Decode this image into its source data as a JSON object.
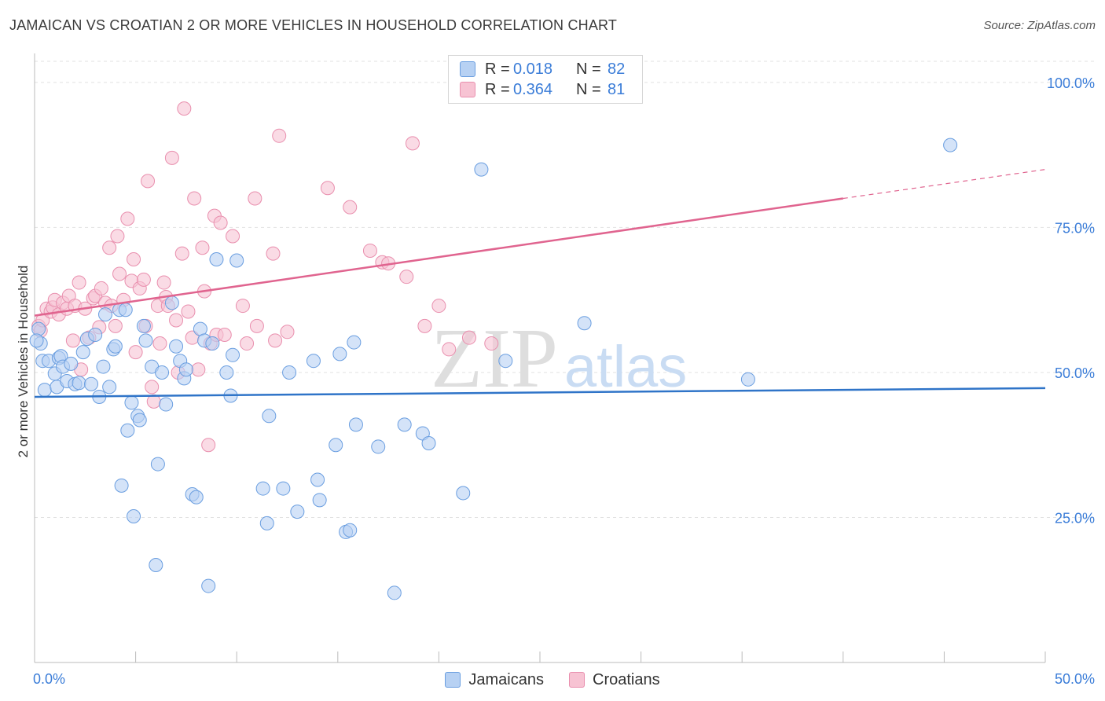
{
  "title": "JAMAICAN VS CROATIAN 2 OR MORE VEHICLES IN HOUSEHOLD CORRELATION CHART",
  "source": "Source: ZipAtlas.com",
  "watermark": {
    "zip": "ZIP",
    "atlas": "atlas"
  },
  "legend": {
    "r_label": "R =",
    "n_label": "N =",
    "jamaicans": {
      "r": "0.018",
      "n": "82"
    },
    "croatians": {
      "r": "0.364",
      "n": "81"
    }
  },
  "colors": {
    "blue_fill": "#b7d1f3",
    "blue_stroke": "#6a9ee0",
    "blue_line": "#2f74c8",
    "pink_fill": "#f7c3d3",
    "pink_stroke": "#e98fae",
    "pink_line": "#e0648f",
    "tick_label": "#3b7dd8",
    "grid": "#e2e2e2"
  },
  "chart_data": {
    "type": "scatter",
    "title": "JAMAICAN VS CROATIAN 2 OR MORE VEHICLES IN HOUSEHOLD CORRELATION CHART",
    "xlabel": "",
    "ylabel": "2 or more Vehicles in Household",
    "xlim": [
      0,
      50
    ],
    "ylim": [
      0,
      105
    ],
    "x_tick_labels": [
      "0.0%",
      "50.0%"
    ],
    "y_ticks": [
      25,
      50,
      75,
      100
    ],
    "y_tick_labels": [
      "25.0%",
      "50.0%",
      "75.0%",
      "100.0%"
    ],
    "legend_position": "bottom-center",
    "series": [
      {
        "name": "Jamaicans",
        "trend": {
          "x": [
            0,
            50
          ],
          "y": [
            45.8,
            47.3
          ],
          "dashed_from": null
        },
        "points": [
          [
            0.2,
            57.5
          ],
          [
            0.3,
            55
          ],
          [
            0.4,
            52
          ],
          [
            0.5,
            47
          ],
          [
            0.7,
            52
          ],
          [
            1.0,
            49.8
          ],
          [
            1.1,
            47.5
          ],
          [
            1.2,
            52.5
          ],
          [
            1.3,
            52.8
          ],
          [
            1.4,
            51
          ],
          [
            1.6,
            48.5
          ],
          [
            1.8,
            51.5
          ],
          [
            2.0,
            48
          ],
          [
            2.2,
            48.2
          ],
          [
            2.4,
            53.5
          ],
          [
            2.6,
            55.8
          ],
          [
            2.8,
            48
          ],
          [
            3.0,
            56.5
          ],
          [
            3.2,
            45.8
          ],
          [
            3.4,
            51
          ],
          [
            3.5,
            60
          ],
          [
            3.7,
            47.5
          ],
          [
            3.9,
            54
          ],
          [
            4.0,
            54.5
          ],
          [
            4.2,
            60.8
          ],
          [
            4.3,
            30.5
          ],
          [
            4.5,
            60.8
          ],
          [
            4.6,
            40
          ],
          [
            4.8,
            44.8
          ],
          [
            4.9,
            25.2
          ],
          [
            5.1,
            42.5
          ],
          [
            5.2,
            41.8
          ],
          [
            5.4,
            58
          ],
          [
            5.5,
            55.5
          ],
          [
            5.8,
            51
          ],
          [
            6.0,
            16.8
          ],
          [
            6.1,
            34.2
          ],
          [
            6.3,
            50
          ],
          [
            6.5,
            44.5
          ],
          [
            6.8,
            62
          ],
          [
            7.0,
            54.5
          ],
          [
            7.2,
            52
          ],
          [
            7.4,
            49
          ],
          [
            7.5,
            50.5
          ],
          [
            7.8,
            29
          ],
          [
            8.0,
            28.5
          ],
          [
            8.2,
            57.5
          ],
          [
            8.4,
            55.5
          ],
          [
            8.6,
            13.2
          ],
          [
            8.8,
            55
          ],
          [
            9.0,
            69.5
          ],
          [
            9.5,
            50
          ],
          [
            9.7,
            46
          ],
          [
            9.8,
            53
          ],
          [
            10.0,
            69.3
          ],
          [
            11.3,
            30
          ],
          [
            11.5,
            24
          ],
          [
            11.6,
            42.5
          ],
          [
            12.3,
            30
          ],
          [
            12.6,
            50
          ],
          [
            13.0,
            26
          ],
          [
            13.8,
            52
          ],
          [
            14.0,
            31.5
          ],
          [
            14.1,
            28
          ],
          [
            14.9,
            37.5
          ],
          [
            15.1,
            53.2
          ],
          [
            15.4,
            22.5
          ],
          [
            15.6,
            22.8
          ],
          [
            15.8,
            55.2
          ],
          [
            15.9,
            41
          ],
          [
            17.0,
            37.2
          ],
          [
            17.8,
            12
          ],
          [
            18.3,
            41
          ],
          [
            19.2,
            39.5
          ],
          [
            19.5,
            37.8
          ],
          [
            21.2,
            29.2
          ],
          [
            22.1,
            85
          ],
          [
            23.3,
            52
          ],
          [
            27.2,
            58.5
          ],
          [
            35.3,
            48.8
          ],
          [
            45.3,
            89.2
          ],
          [
            0.1,
            55.5
          ]
        ]
      },
      {
        "name": "Croatians",
        "trend": {
          "x": [
            0,
            40,
            50
          ],
          "y": [
            59.8,
            80,
            85
          ],
          "dashed_from": 40
        },
        "points": [
          [
            0.2,
            58
          ],
          [
            0.3,
            57.2
          ],
          [
            0.4,
            59
          ],
          [
            0.6,
            61
          ],
          [
            0.8,
            60.5
          ],
          [
            0.9,
            61.2
          ],
          [
            1.0,
            62.5
          ],
          [
            1.2,
            60
          ],
          [
            1.4,
            62
          ],
          [
            1.6,
            61
          ],
          [
            1.7,
            63.2
          ],
          [
            1.9,
            55.5
          ],
          [
            2.0,
            61.5
          ],
          [
            2.2,
            65.5
          ],
          [
            2.3,
            50.5
          ],
          [
            2.5,
            61
          ],
          [
            2.7,
            56
          ],
          [
            2.9,
            62.8
          ],
          [
            3.0,
            63.2
          ],
          [
            3.2,
            57.8
          ],
          [
            3.3,
            64.5
          ],
          [
            3.5,
            62
          ],
          [
            3.7,
            71.5
          ],
          [
            3.8,
            61.5
          ],
          [
            4.0,
            58
          ],
          [
            4.1,
            73.5
          ],
          [
            4.2,
            67
          ],
          [
            4.4,
            62.5
          ],
          [
            4.6,
            76.5
          ],
          [
            4.8,
            65.8
          ],
          [
            4.9,
            69.5
          ],
          [
            5.0,
            53.5
          ],
          [
            5.2,
            64.5
          ],
          [
            5.4,
            66
          ],
          [
            5.5,
            58
          ],
          [
            5.6,
            83
          ],
          [
            5.8,
            47.5
          ],
          [
            5.9,
            45
          ],
          [
            6.1,
            61.5
          ],
          [
            6.2,
            55
          ],
          [
            6.4,
            65.5
          ],
          [
            6.5,
            63
          ],
          [
            6.6,
            61.5
          ],
          [
            6.8,
            87
          ],
          [
            7.0,
            59
          ],
          [
            7.1,
            50
          ],
          [
            7.3,
            70.5
          ],
          [
            7.4,
            95.5
          ],
          [
            7.6,
            60.5
          ],
          [
            7.8,
            56
          ],
          [
            7.9,
            80
          ],
          [
            8.1,
            50.5
          ],
          [
            8.3,
            71.5
          ],
          [
            8.4,
            64
          ],
          [
            8.6,
            37.5
          ],
          [
            8.7,
            55
          ],
          [
            8.9,
            77
          ],
          [
            9.0,
            56.5
          ],
          [
            9.2,
            75.8
          ],
          [
            9.4,
            56.5
          ],
          [
            9.8,
            73.5
          ],
          [
            10.3,
            61.5
          ],
          [
            10.5,
            55
          ],
          [
            10.9,
            80
          ],
          [
            11.0,
            58
          ],
          [
            11.8,
            70.5
          ],
          [
            11.9,
            55.5
          ],
          [
            12.1,
            90.8
          ],
          [
            12.5,
            57
          ],
          [
            14.5,
            81.8
          ],
          [
            15.6,
            78.5
          ],
          [
            16.6,
            71
          ],
          [
            17.2,
            69
          ],
          [
            17.5,
            68.8
          ],
          [
            18.4,
            66.5
          ],
          [
            18.7,
            89.5
          ],
          [
            19.3,
            58
          ],
          [
            20.0,
            61.5
          ],
          [
            20.5,
            54
          ],
          [
            21.5,
            56
          ],
          [
            22.6,
            55
          ]
        ]
      }
    ]
  }
}
